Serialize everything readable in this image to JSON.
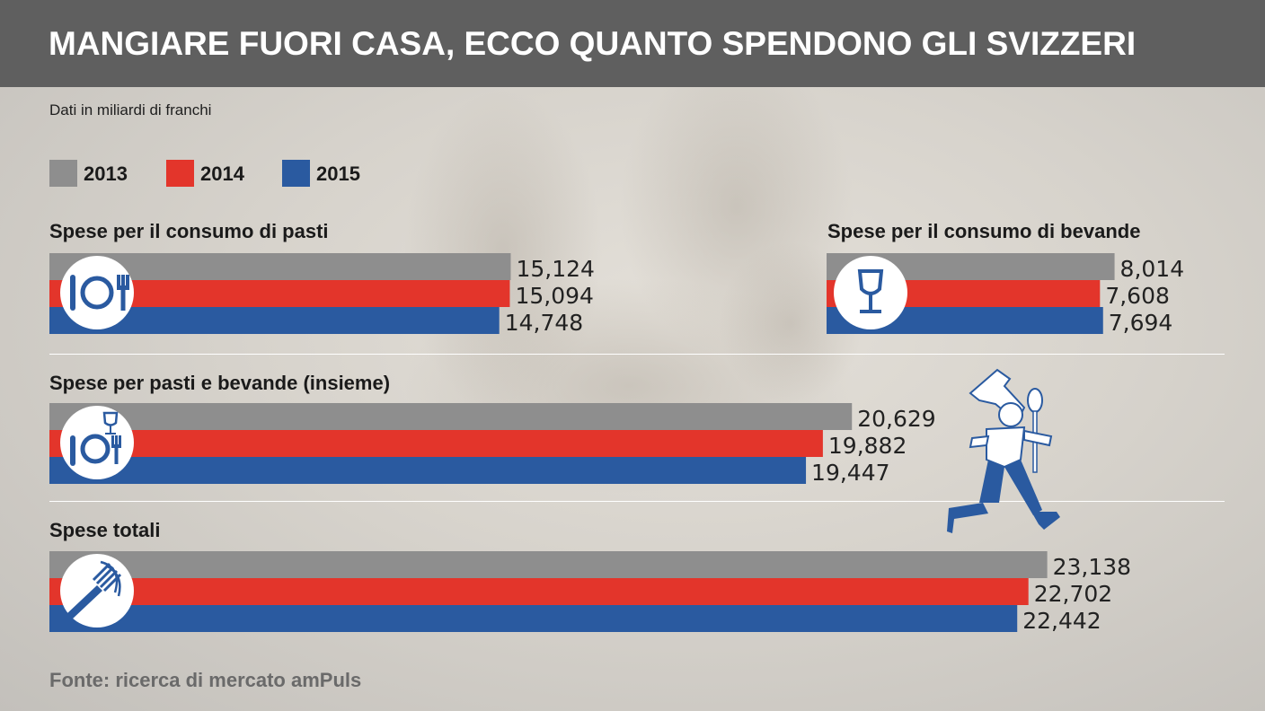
{
  "header": {
    "title": "MANGIARE FUORI CASA, ECCO QUANTO SPENDONO GLI SVIZZERI"
  },
  "subtitle": "Dati in miliardi di franchi",
  "source": "Fonte: ricerca di mercato amPuls",
  "colors": {
    "2013": "#8e8e8e",
    "2014": "#e3352b",
    "2015": "#2a5aa0",
    "header_bg": "#5f5f5f"
  },
  "legend": [
    {
      "label": "2013",
      "color": "#8e8e8e"
    },
    {
      "label": "2014",
      "color": "#e3352b"
    },
    {
      "label": "2015",
      "color": "#2a5aa0"
    }
  ],
  "icons": [
    "plate-cutlery-icon",
    "wine-glass-icon",
    "plate-glass-icon",
    "fork-spaghetti-icon",
    "running-chef-icon"
  ],
  "chart_data": [
    {
      "type": "bar",
      "orientation": "horizontal",
      "title": "Spese per il consumo di pasti",
      "categories": [
        "2013",
        "2014",
        "2015"
      ],
      "values": [
        15.124,
        15.094,
        14.748
      ],
      "labels": [
        "15,124",
        "15,094",
        "14,748"
      ]
    },
    {
      "type": "bar",
      "orientation": "horizontal",
      "title": "Spese per il consumo di bevande",
      "categories": [
        "2013",
        "2014",
        "2015"
      ],
      "values": [
        8.014,
        7.608,
        7.694
      ],
      "labels": [
        "8,014",
        "7,608",
        "7,694"
      ]
    },
    {
      "type": "bar",
      "orientation": "horizontal",
      "title": "Spese per pasti e bevande (insieme)",
      "categories": [
        "2013",
        "2014",
        "2015"
      ],
      "values": [
        20.629,
        19.882,
        19.447
      ],
      "labels": [
        "20,629",
        "19,882",
        "19,447"
      ]
    },
    {
      "type": "bar",
      "orientation": "horizontal",
      "title": "Spese totali",
      "categories": [
        "2013",
        "2014",
        "2015"
      ],
      "values": [
        23.138,
        22.702,
        22.442
      ],
      "labels": [
        "23,138",
        "22,702",
        "22,442"
      ]
    }
  ]
}
